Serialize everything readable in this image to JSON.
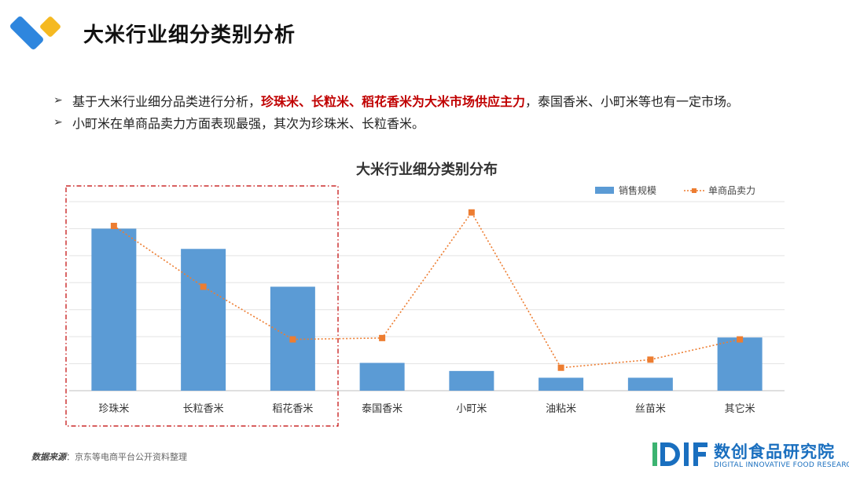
{
  "header": {
    "title": "大米行业细分类别分析"
  },
  "bullets": [
    {
      "before": "基于大米行业细分品类进行分析，",
      "highlight": "珍珠米、长粒米、稻花香米为大米市场供应主力",
      "after": "，泰国香米、小町米等也有一定市场。"
    },
    {
      "before": "小町米在单商品卖力方面表现最强，其次为珍珠米、长粒香米。",
      "highlight": "",
      "after": ""
    }
  ],
  "chart_data": {
    "type": "bar",
    "title": "大米行业细分类别分布",
    "categories": [
      "珍珠米",
      "长粒香米",
      "稻花香米",
      "泰国香米",
      "小町米",
      "油粘米",
      "丝苗米",
      "其它米"
    ],
    "series": [
      {
        "name": "销售规模",
        "type": "bar",
        "values": [
          60,
          52.5,
          38.5,
          10.3,
          7.3,
          4.8,
          4.8,
          19.7
        ]
      },
      {
        "name": "单商品卖力",
        "type": "line",
        "values": [
          61,
          38.5,
          19,
          19.5,
          66,
          8.5,
          11.5,
          19
        ]
      }
    ],
    "ylim": [
      0,
      70
    ],
    "grid": true,
    "legend": "top-right",
    "highlight_group": [
      "珍珠米",
      "长粒香米",
      "稻花香米"
    ],
    "colors": {
      "bar": "#5b9bd5",
      "line": "#ed7d31",
      "highlight_box": "#c00000"
    }
  },
  "footer": {
    "source_label": "数据来源",
    "source_text": "：京东等电商平台公开资料整理",
    "brand_cn": "数创食品研究院",
    "brand_en": "DIGITAL INNOVATIVE FOOD RESEARCH"
  }
}
